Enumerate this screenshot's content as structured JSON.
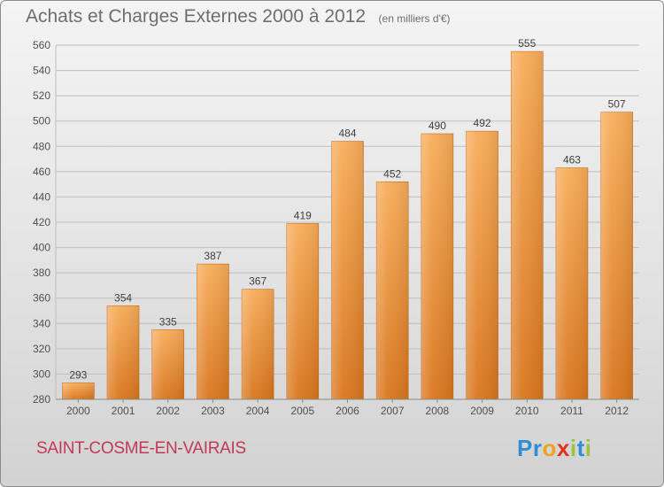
{
  "title": "Achats et Charges Externes 2000 à 2012",
  "unit": "(en milliers d'€)",
  "commune": "SAINT-COSME-EN-VAIRAIS",
  "logo": {
    "letters": [
      "P",
      "r",
      "o",
      "x",
      "i",
      "t",
      "i"
    ],
    "colors": [
      "#2f8fd6",
      "#2f8fd6",
      "#f0a21f",
      "#e2311d",
      "#9bc43c",
      "#2f8fd6",
      "#9bc43c"
    ]
  },
  "colors": {
    "bar_top": "#f8ad5a",
    "bar_bottom": "#d9761d",
    "grid": "#bfbfbf",
    "axis_text": "#505050"
  },
  "chart_data": {
    "type": "bar",
    "categories": [
      "2000",
      "2001",
      "2002",
      "2003",
      "2004",
      "2005",
      "2006",
      "2007",
      "2008",
      "2009",
      "2010",
      "2011",
      "2012"
    ],
    "values": [
      293,
      354,
      335,
      387,
      367,
      419,
      484,
      452,
      490,
      492,
      555,
      463,
      507
    ],
    "ylim": [
      280,
      560
    ],
    "yticks": [
      280,
      300,
      320,
      340,
      360,
      380,
      400,
      420,
      440,
      460,
      480,
      500,
      520,
      540,
      560
    ],
    "grid": true,
    "data_labels": true
  }
}
